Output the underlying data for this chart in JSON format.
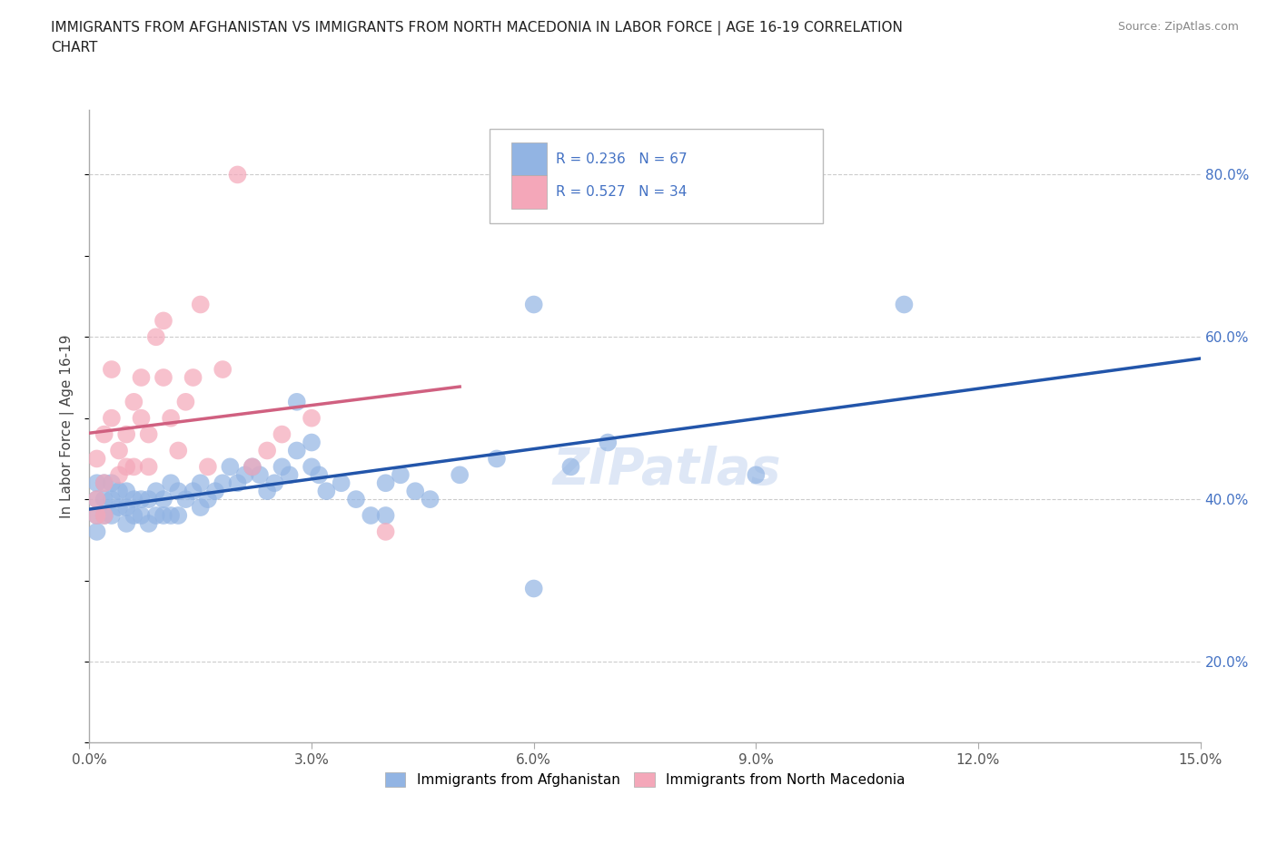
{
  "title": "IMMIGRANTS FROM AFGHANISTAN VS IMMIGRANTS FROM NORTH MACEDONIA IN LABOR FORCE | AGE 16-19 CORRELATION\nCHART",
  "source": "Source: ZipAtlas.com",
  "ylabel": "In Labor Force | Age 16-19",
  "legend_label1": "Immigrants from Afghanistan",
  "legend_label2": "Immigrants from North Macedonia",
  "r1": 0.236,
  "n1": 67,
  "r2": 0.527,
  "n2": 34,
  "color1": "#92b4e3",
  "color2": "#f4a7b9",
  "trendline_color1": "#2255aa",
  "trendline_color2": "#d06080",
  "xlim": [
    0.0,
    0.15
  ],
  "ylim": [
    0.1,
    0.88
  ],
  "xticks": [
    0.0,
    0.03,
    0.06,
    0.09,
    0.12,
    0.15
  ],
  "xtick_labels": [
    "0.0%",
    "3.0%",
    "6.0%",
    "9.0%",
    "12.0%",
    "15.0%"
  ],
  "yticks_right": [
    0.2,
    0.4,
    0.6,
    0.8
  ],
  "ytick_labels_right": [
    "20.0%",
    "40.0%",
    "60.0%",
    "80.0%"
  ],
  "watermark": "ZIPatlas",
  "afghanistan_x": [
    0.001,
    0.001,
    0.001,
    0.001,
    0.002,
    0.002,
    0.002,
    0.003,
    0.003,
    0.003,
    0.004,
    0.004,
    0.005,
    0.005,
    0.005,
    0.006,
    0.006,
    0.007,
    0.007,
    0.008,
    0.008,
    0.009,
    0.009,
    0.01,
    0.01,
    0.011,
    0.011,
    0.012,
    0.012,
    0.013,
    0.014,
    0.015,
    0.015,
    0.016,
    0.017,
    0.018,
    0.019,
    0.02,
    0.021,
    0.022,
    0.023,
    0.024,
    0.025,
    0.026,
    0.027,
    0.028,
    0.03,
    0.031,
    0.032,
    0.034,
    0.036,
    0.038,
    0.04,
    0.042,
    0.044,
    0.046,
    0.05,
    0.055,
    0.06,
    0.065,
    0.07,
    0.09,
    0.11,
    0.028,
    0.03,
    0.04,
    0.06
  ],
  "afghanistan_y": [
    0.38,
    0.4,
    0.42,
    0.36,
    0.38,
    0.4,
    0.42,
    0.38,
    0.4,
    0.42,
    0.39,
    0.41,
    0.37,
    0.39,
    0.41,
    0.38,
    0.4,
    0.38,
    0.4,
    0.37,
    0.4,
    0.38,
    0.41,
    0.38,
    0.4,
    0.38,
    0.42,
    0.38,
    0.41,
    0.4,
    0.41,
    0.39,
    0.42,
    0.4,
    0.41,
    0.42,
    0.44,
    0.42,
    0.43,
    0.44,
    0.43,
    0.41,
    0.42,
    0.44,
    0.43,
    0.46,
    0.44,
    0.43,
    0.41,
    0.42,
    0.4,
    0.38,
    0.42,
    0.43,
    0.41,
    0.4,
    0.43,
    0.45,
    0.64,
    0.44,
    0.47,
    0.43,
    0.64,
    0.52,
    0.47,
    0.38,
    0.29
  ],
  "north_macedonia_x": [
    0.001,
    0.001,
    0.001,
    0.002,
    0.002,
    0.002,
    0.003,
    0.003,
    0.004,
    0.004,
    0.005,
    0.005,
    0.006,
    0.006,
    0.007,
    0.007,
    0.008,
    0.008,
    0.009,
    0.01,
    0.01,
    0.011,
    0.012,
    0.013,
    0.014,
    0.015,
    0.016,
    0.018,
    0.02,
    0.022,
    0.024,
    0.026,
    0.03,
    0.04
  ],
  "north_macedonia_y": [
    0.38,
    0.4,
    0.45,
    0.38,
    0.42,
    0.48,
    0.5,
    0.56,
    0.43,
    0.46,
    0.44,
    0.48,
    0.52,
    0.44,
    0.5,
    0.55,
    0.44,
    0.48,
    0.6,
    0.55,
    0.62,
    0.5,
    0.46,
    0.52,
    0.55,
    0.64,
    0.44,
    0.56,
    0.8,
    0.44,
    0.46,
    0.48,
    0.5,
    0.36
  ]
}
